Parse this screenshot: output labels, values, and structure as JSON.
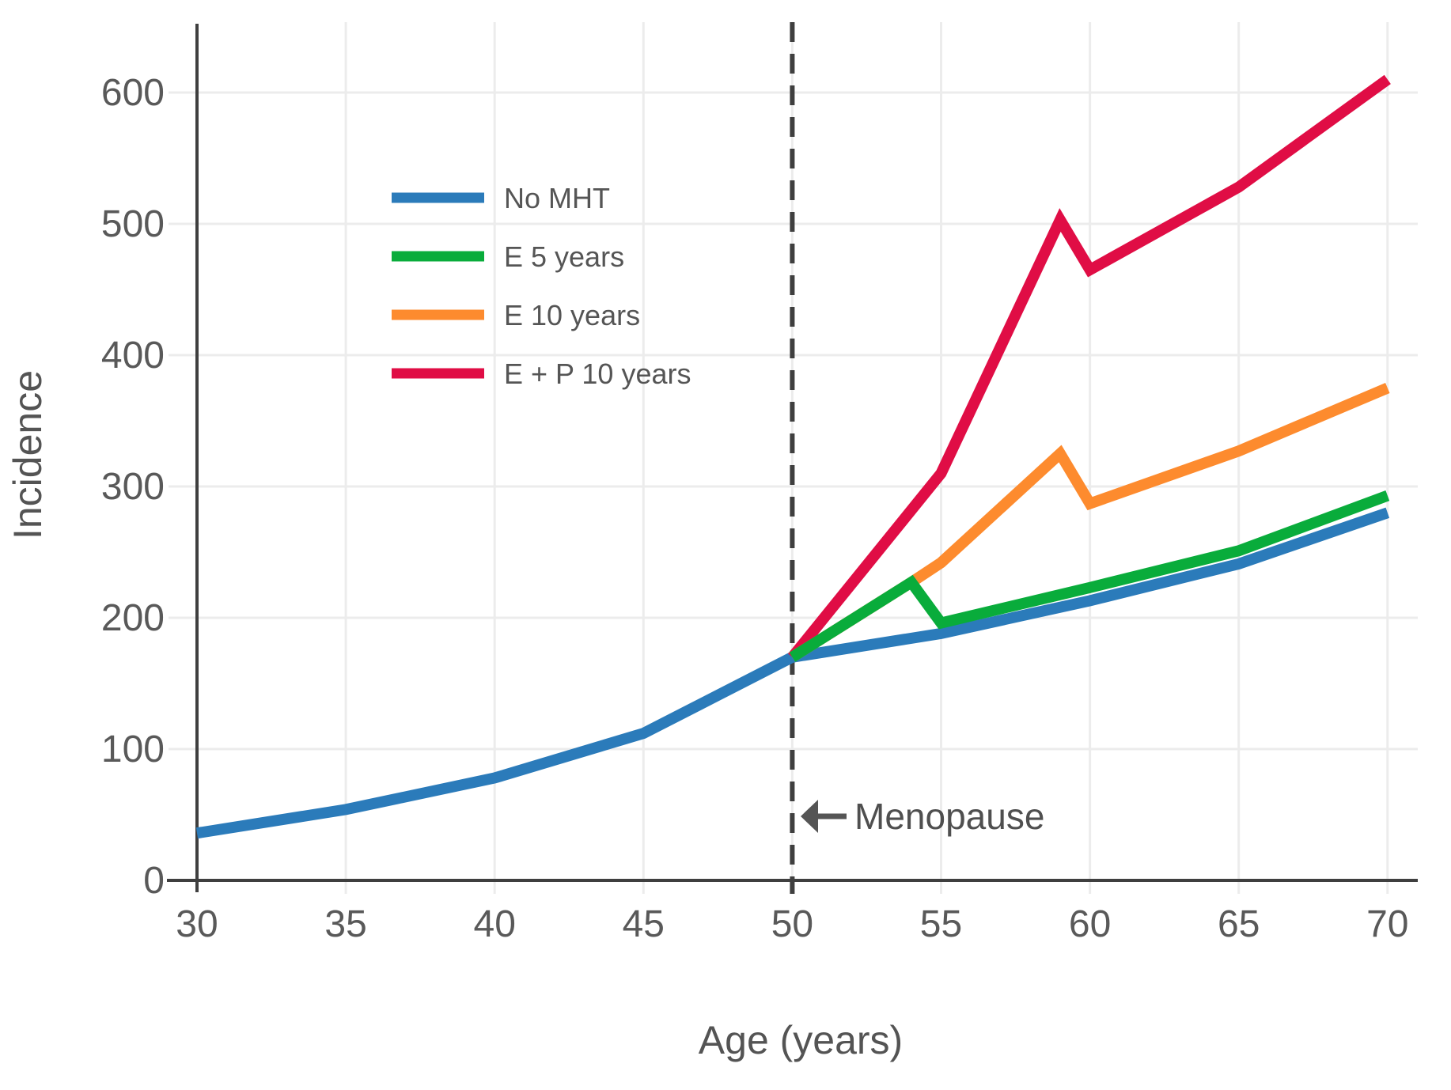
{
  "chart_data": {
    "type": "line",
    "title": "",
    "xlabel": "Age (years)",
    "ylabel": "Incidence",
    "xlim": [
      29,
      71
    ],
    "ylim": [
      0,
      652
    ],
    "xticks": [
      30,
      35,
      40,
      45,
      50,
      55,
      60,
      65,
      70
    ],
    "yticks": [
      0,
      100,
      200,
      300,
      400,
      500,
      600
    ],
    "grid": true,
    "legend_position": "upper-left-inside",
    "series": [
      {
        "name": "No MHT",
        "color": "#2B7BBA",
        "points": [
          [
            30,
            36
          ],
          [
            35,
            54
          ],
          [
            40,
            78
          ],
          [
            45,
            112
          ],
          [
            50,
            170
          ],
          [
            55,
            188
          ],
          [
            60,
            213
          ],
          [
            65,
            241
          ],
          [
            70,
            280
          ]
        ]
      },
      {
        "name": "E 5 years",
        "color": "#09AC3B",
        "points": [
          [
            50,
            170
          ],
          [
            54,
            227
          ],
          [
            55,
            196
          ],
          [
            60,
            223
          ],
          [
            65,
            251
          ],
          [
            70,
            293
          ]
        ]
      },
      {
        "name": "E 10 years",
        "color": "#FD8B2E",
        "points": [
          [
            50,
            170
          ],
          [
            54,
            227
          ],
          [
            55,
            242
          ],
          [
            59,
            325
          ],
          [
            60,
            287
          ],
          [
            65,
            327
          ],
          [
            70,
            375
          ]
        ]
      },
      {
        "name": "E + P 10 years",
        "color": "#E00D45",
        "points": [
          [
            50,
            170
          ],
          [
            55,
            310
          ],
          [
            59,
            503
          ],
          [
            60,
            465
          ],
          [
            65,
            528
          ],
          [
            70,
            610
          ]
        ]
      }
    ],
    "reference_line": {
      "x": 50,
      "style": "dashed",
      "color": "#3F3F3F"
    },
    "annotation": {
      "text": "Menopause",
      "icon": "left-arrow",
      "x": 50,
      "y": 50
    }
  },
  "colors": {
    "grid": "#ECECEC",
    "axis": "#3F3F3F",
    "tick_text": "#595959",
    "legend_text": "#555555"
  }
}
